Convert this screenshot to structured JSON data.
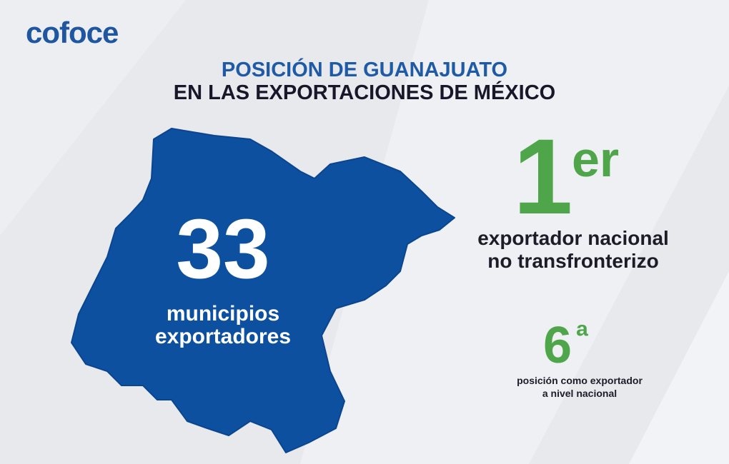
{
  "logo": "cofoce",
  "header": {
    "title_line1": "POSICIÓN DE GUANAJUATO",
    "title_line2": "EN LAS EXPORTACIONES DE MÉXICO"
  },
  "map_stat": {
    "number": "33",
    "line1": "municipios",
    "line2": "exportadores"
  },
  "rank_export": {
    "number": "1",
    "suffix": "er",
    "line1": "exportador nacional",
    "line2": "no transfronterizo"
  },
  "rank_position": {
    "number": "6",
    "suffix": "ª",
    "line1": "posición como exportador",
    "line2": "a nivel nacional"
  }
}
